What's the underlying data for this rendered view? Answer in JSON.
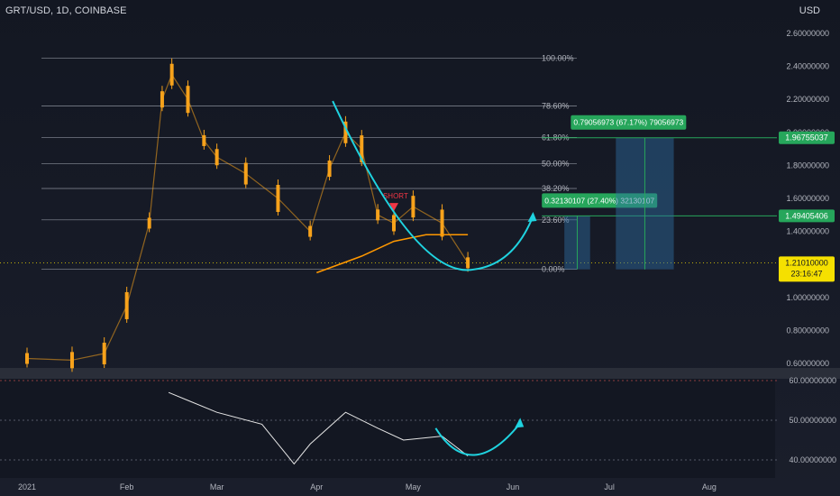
{
  "header": {
    "symbol": "GRT/USD, 1D, COINBASE",
    "currency": "USD"
  },
  "price_axis": {
    "ticks": [
      "2.60000000",
      "2.40000000",
      "2.20000000",
      "2.00000000",
      "1.80000000",
      "1.60000000",
      "1.40000000",
      "1.20000000",
      "1.00000000",
      "0.80000000",
      "0.60000000"
    ],
    "current_price": "1.21010000",
    "countdown": "23:16:47"
  },
  "fib_levels": [
    {
      "label": "100.00%"
    },
    {
      "label": "78.60%"
    },
    {
      "label": "61.80%"
    },
    {
      "label": "50.00%"
    },
    {
      "label": "38.20%"
    },
    {
      "label": "23.60%"
    },
    {
      "label": "0.00%"
    }
  ],
  "targets": [
    {
      "label": "0.32130107 (27.40%) 32130107",
      "price_label": "1.49405406"
    },
    {
      "label": "0.79056973 (67.17%) 79056973",
      "price_label": "1.96755037"
    }
  ],
  "short_label": "SHORT",
  "time_axis": {
    "labels": [
      "2021",
      "Feb",
      "Mar",
      "Apr",
      "May",
      "Jun",
      "Jul",
      "Aug"
    ]
  },
  "indicator_axis": {
    "ticks": [
      "60.00000000",
      "50.00000000",
      "40.00000000"
    ]
  },
  "colors": {
    "background": "#131722",
    "grid": "#2a2e39",
    "candle": "#f7a21b",
    "ema": "#ff9800",
    "arrow": "#1fd3e0",
    "target_green": "#26a65b",
    "current_price": "#f5e000",
    "fib_line": "#8a8f9a",
    "text": "#b2b5be"
  },
  "chart_data": {
    "type": "line",
    "title": "GRT/USD, 1D, COINBASE",
    "x_range": [
      "2021-01-01",
      "2021-08-31"
    ],
    "ylim": [
      0.6,
      2.7
    ],
    "y_ticks": [
      2.6,
      2.4,
      2.2,
      2.0,
      1.8,
      1.6,
      1.4,
      1.2,
      1.0,
      0.8,
      0.6
    ],
    "last_price": 1.2101,
    "fibonacci": [
      {
        "level": "100.00%",
        "price": 2.45
      },
      {
        "level": "78.60%",
        "price": 2.16
      },
      {
        "level": "61.80%",
        "price": 1.97
      },
      {
        "level": "50.00%",
        "price": 1.81
      },
      {
        "level": "38.20%",
        "price": 1.66
      },
      {
        "level": "23.60%",
        "price": 1.47
      },
      {
        "level": "0.00%",
        "price": 1.17
      }
    ],
    "projection_targets": [
      1.49405406,
      1.96755037
    ],
    "series": [
      {
        "name": "GRT/USD close",
        "x": [
          "2021-01-01",
          "2021-01-15",
          "2021-01-25",
          "2021-02-01",
          "2021-02-08",
          "2021-02-12",
          "2021-02-15",
          "2021-02-20",
          "2021-02-25",
          "2021-03-01",
          "2021-03-10",
          "2021-03-20",
          "2021-03-30",
          "2021-04-05",
          "2021-04-10",
          "2021-04-15",
          "2021-04-20",
          "2021-04-25",
          "2021-05-01",
          "2021-05-10",
          "2021-05-18"
        ],
        "values": [
          0.63,
          0.62,
          0.66,
          0.95,
          1.45,
          2.2,
          2.35,
          2.2,
          1.95,
          1.85,
          1.75,
          1.6,
          1.4,
          1.78,
          2.0,
          1.9,
          1.5,
          1.45,
          1.55,
          1.45,
          1.21
        ]
      },
      {
        "name": "EMA",
        "x": [
          "2021-04-01",
          "2021-04-15",
          "2021-04-25",
          "2021-05-05",
          "2021-05-18"
        ],
        "values": [
          1.15,
          1.25,
          1.34,
          1.38,
          1.38
        ]
      }
    ],
    "indicator": {
      "ticks": [
        60,
        50,
        40
      ],
      "x": [
        "2021-02-14",
        "2021-02-20",
        "2021-03-01",
        "2021-03-15",
        "2021-03-25",
        "2021-03-30",
        "2021-04-10",
        "2021-04-20",
        "2021-04-28",
        "2021-05-10",
        "2021-05-18"
      ],
      "values": [
        57,
        55,
        52,
        49,
        39,
        44,
        52,
        48,
        45,
        46,
        41
      ]
    }
  }
}
